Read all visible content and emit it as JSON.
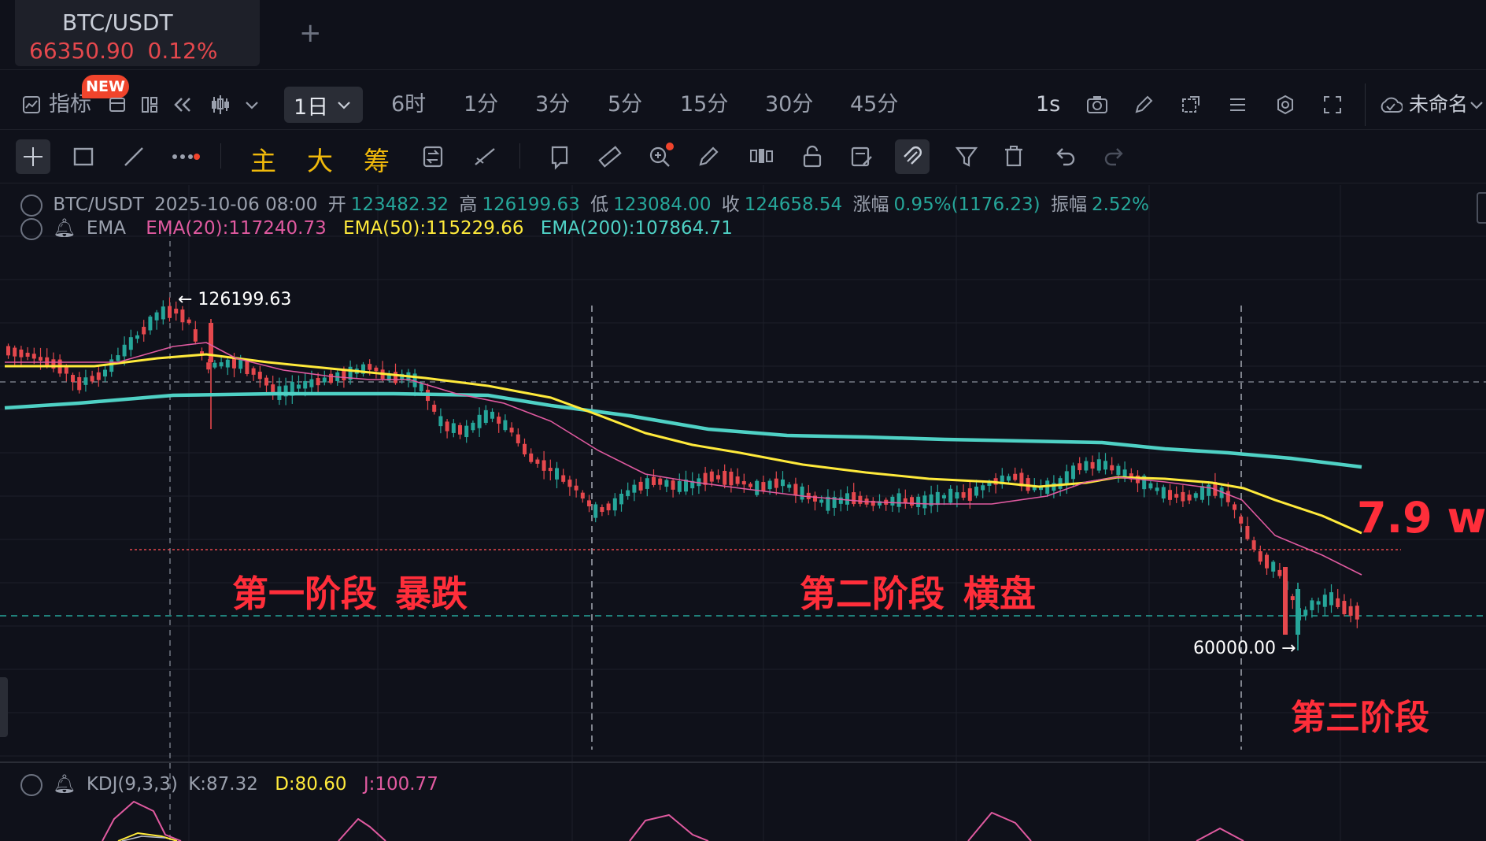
{
  "ticker": {
    "symbol": "BTC/USDT",
    "price": "66350.90",
    "change": "0.12%"
  },
  "toolbar": {
    "indicators_label": "指标",
    "new_badge": "NEW",
    "active_interval": "1日",
    "intervals": [
      "6时",
      "1分",
      "3分",
      "5分",
      "15分",
      "30分",
      "45分"
    ],
    "refresh_label": "1s",
    "layout_name": "未命名"
  },
  "drawing_tools": {
    "main_label": "主",
    "big_label": "大",
    "chip_label": "筹"
  },
  "ohlc": {
    "symbol": "BTC/USDT",
    "datetime": "2025-10-06 08:00",
    "open_label": "开",
    "open": "123482.32",
    "high_label": "高",
    "high": "126199.63",
    "low_label": "低",
    "low": "123084.00",
    "close_label": "收",
    "close": "124658.54",
    "change_label": "涨幅",
    "change": "0.95%(1176.23)",
    "amplitude_label": "振幅",
    "amplitude": "2.52%"
  },
  "ema": {
    "name": "EMA",
    "ema20": "EMA(20):117240.73",
    "ema50": "EMA(50):115229.66",
    "ema200": "EMA(200):107864.71",
    "colors": {
      "ema20": "#e05aa0",
      "ema50": "#ffea3b",
      "ema200": "#4fd1c5"
    }
  },
  "kdj": {
    "name": "KDJ(9,3,3)",
    "k": "K:87.32",
    "d": "D:80.60",
    "j": "J:100.77"
  },
  "chart": {
    "high_marker": "← 126199.63",
    "low_marker": "60000.00 →",
    "stage1": "第一阶段",
    "stage1_desc": "暴跌",
    "stage2": "第二阶段",
    "stage2_desc": "横盘",
    "stage3": "第三阶段",
    "target_label": "7.9 w",
    "colors": {
      "up": "#26a69a",
      "down": "#e5484d",
      "annotation": "#ff2e3a"
    }
  },
  "chart_data": {
    "type": "candlestick",
    "symbol": "BTC/USDT",
    "interval": "1日",
    "price_markers": {
      "high": 126199.63,
      "low": 60000.0
    },
    "ema_last": {
      "EMA(20)": 117240.73,
      "EMA(50)": 115229.66,
      "EMA(200)": 107864.71
    },
    "reference_level": 79000,
    "selected_candle": {
      "date": "2025-10-06 08:00",
      "open": 123482.32,
      "high": 126199.63,
      "low": 123084.0,
      "close": 124658.54
    }
  }
}
